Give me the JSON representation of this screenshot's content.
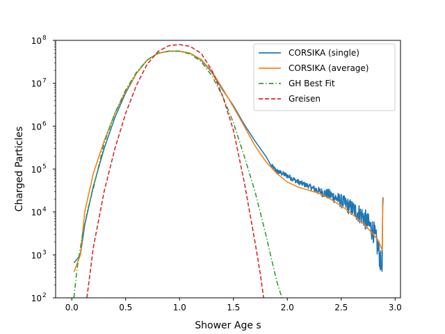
{
  "chart_data": {
    "type": "line",
    "xlabel": "Shower Age s",
    "ylabel": "Charged Particles",
    "xlim": [
      -0.15,
      3.05
    ],
    "ylim": [
      100,
      100000000
    ],
    "yscale": "log",
    "x_ticks": [
      0.0,
      0.5,
      1.0,
      1.5,
      2.0,
      2.5,
      3.0
    ],
    "x_tick_labels": [
      "0.0",
      "0.5",
      "1.0",
      "1.5",
      "2.0",
      "2.5",
      "3.0"
    ],
    "y_ticks": [
      {
        "value": 100,
        "base": "10",
        "exp": "2"
      },
      {
        "value": 1000,
        "base": "10",
        "exp": "3"
      },
      {
        "value": 10000,
        "base": "10",
        "exp": "4"
      },
      {
        "value": 100000,
        "base": "10",
        "exp": "5"
      },
      {
        "value": 1000000,
        "base": "10",
        "exp": "6"
      },
      {
        "value": 10000000,
        "base": "10",
        "exp": "7"
      },
      {
        "value": 100000000,
        "base": "10",
        "exp": "8"
      }
    ],
    "legend_position": "top-right",
    "series": [
      {
        "name": "CORSIKA (single)",
        "color": "#1f77b4",
        "dash": "solid",
        "noisy": true,
        "x": [
          0.02,
          0.08,
          0.12,
          0.2,
          0.3,
          0.4,
          0.5,
          0.6,
          0.7,
          0.8,
          0.9,
          1.0,
          1.1,
          1.2,
          1.3,
          1.4,
          1.5,
          1.6,
          1.7,
          1.8,
          1.85,
          1.9,
          2.0,
          2.1,
          2.2,
          2.3,
          2.4,
          2.5,
          2.6,
          2.7,
          2.8,
          2.85,
          2.88,
          2.885,
          2.89
        ],
        "y": [
          650,
          1000,
          5000,
          40000,
          300000,
          1600000,
          6000000,
          17000000,
          35000000,
          50000000,
          56000000,
          56000000,
          50000000,
          35000000,
          18000000,
          7000000,
          3000000,
          1100000,
          450000,
          200000,
          120000,
          90000,
          70000,
          50000,
          40000,
          30000,
          25000,
          18000,
          12000,
          8000,
          3500,
          1200,
          400,
          18000,
          25000
        ]
      },
      {
        "name": "CORSIKA (average)",
        "color": "#ff7f0e",
        "dash": "solid",
        "noisy": false,
        "x": [
          0.02,
          0.08,
          0.12,
          0.2,
          0.3,
          0.4,
          0.5,
          0.6,
          0.7,
          0.8,
          0.9,
          1.0,
          1.1,
          1.2,
          1.3,
          1.4,
          1.5,
          1.6,
          1.7,
          1.8,
          1.9,
          2.0,
          2.1,
          2.2,
          2.3,
          2.4,
          2.5,
          2.6,
          2.7,
          2.8,
          2.85,
          2.88,
          2.885,
          2.89
        ],
        "y": [
          400,
          1000,
          10000,
          80000,
          450000,
          2000000,
          6500000,
          17000000,
          35000000,
          50000000,
          56000000,
          56000000,
          50000000,
          36000000,
          19000000,
          7500000,
          2800000,
          1000000,
          350000,
          150000,
          80000,
          50000,
          38000,
          32000,
          27000,
          20000,
          14000,
          9000,
          5500,
          3000,
          2000,
          1300,
          12000,
          20000
        ]
      },
      {
        "name": "GH Best Fit",
        "color": "#2ca02c",
        "dash": "dashdot",
        "noisy": false,
        "x": [
          0.02,
          0.05,
          0.1,
          0.15,
          0.2,
          0.3,
          0.4,
          0.5,
          0.6,
          0.7,
          0.8,
          0.9,
          1.0,
          1.1,
          1.2,
          1.3,
          1.4,
          1.5,
          1.6,
          1.7,
          1.8,
          1.9,
          1.95
        ],
        "y": [
          100,
          500,
          3000,
          12000,
          35000,
          400000,
          2000000,
          7000000,
          18000000,
          35000000,
          50000000,
          56000000,
          56000000,
          48000000,
          32000000,
          15000000,
          5000000,
          1200000,
          200000,
          30000,
          3000,
          250,
          100
        ]
      },
      {
        "name": "Greisen",
        "color": "#d62728",
        "dash": "dashed",
        "noisy": false,
        "x": [
          0.14,
          0.2,
          0.3,
          0.4,
          0.5,
          0.6,
          0.7,
          0.8,
          0.9,
          1.0,
          1.1,
          1.2,
          1.3,
          1.4,
          1.5,
          1.6,
          1.7,
          1.75,
          1.78
        ],
        "y": [
          100,
          1500,
          30000,
          300000,
          2000000,
          9000000,
          28000000,
          55000000,
          75000000,
          80000000,
          72000000,
          50000000,
          20000000,
          5000000,
          800000,
          50000,
          2000,
          350,
          100
        ]
      }
    ]
  }
}
